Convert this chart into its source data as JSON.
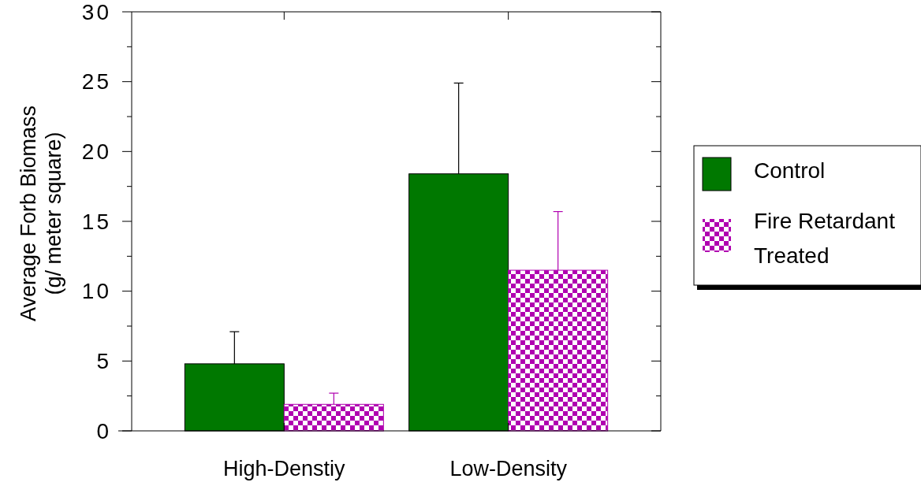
{
  "chart_data": {
    "type": "bar",
    "ylabel": "Average Forb Biomass\n(g/ meter square)",
    "categories": [
      "High-Denstiy",
      "Low-Density"
    ],
    "series": [
      {
        "name": "Control",
        "color": "#007800",
        "values": [
          4.8,
          18.4
        ],
        "errors": [
          [
            4.8,
            7.1
          ],
          [
            18.4,
            24.9
          ]
        ]
      },
      {
        "name": "Fire Retardant Treated",
        "color": "#b000b0",
        "values": [
          1.9,
          11.5
        ],
        "errors": [
          [
            1.9,
            2.7
          ],
          [
            11.5,
            15.7
          ]
        ]
      }
    ],
    "ylim": [
      0,
      30
    ],
    "yticks": [
      0,
      {
        "value": 2.5,
        "label": null
      },
      5,
      {
        "value": 7.5,
        "label": null
      },
      10,
      {
        "value": 12.5,
        "label": null
      },
      15,
      {
        "value": 17.5,
        "label": null
      },
      20,
      {
        "value": 22.5,
        "label": null
      },
      25,
      {
        "value": 27.5,
        "label": null
      },
      30
    ],
    "grid": false,
    "legend": "right"
  }
}
